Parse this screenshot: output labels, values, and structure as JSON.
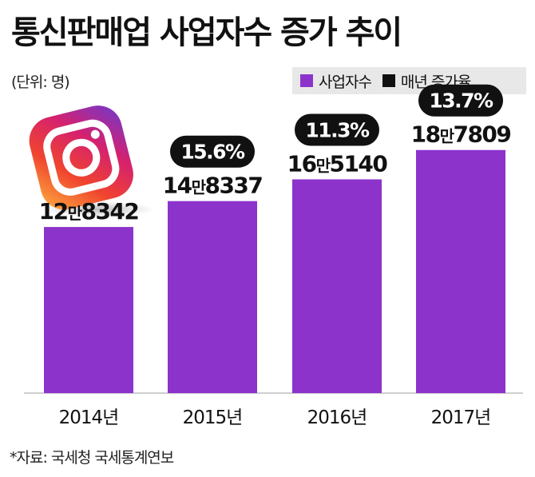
{
  "title": "통신판매업 사업자수 증가 추이",
  "unit_note": "(단위: 명)",
  "legend": [
    {
      "label": "사업자수",
      "color": "#8c33cc"
    },
    {
      "label": "매년 증가율",
      "color": "#111111"
    }
  ],
  "source": "*자료: 국세청 국세통계연보",
  "logo_icon": "instagram-logo-icon",
  "chart_data": {
    "type": "bar",
    "categories": [
      "2014년",
      "2015년",
      "2016년",
      "2017년"
    ],
    "series": [
      {
        "name": "사업자수",
        "values": [
          128342,
          148337,
          165140,
          187809
        ],
        "labels": [
          {
            "head": "12",
            "unit": "만",
            "tail": "8342"
          },
          {
            "head": "14",
            "unit": "만",
            "tail": "8337"
          },
          {
            "head": "16",
            "unit": "만",
            "tail": "5140"
          },
          {
            "head": "18",
            "unit": "만",
            "tail": "7809"
          }
        ]
      },
      {
        "name": "매년 증가율",
        "values": [
          null,
          15.6,
          11.3,
          13.7
        ],
        "labels": [
          null,
          "15.6%",
          "11.3%",
          "13.7%"
        ]
      }
    ],
    "ylim": [
      0,
      250000
    ],
    "bar_color": "#8c33cc",
    "grid": false
  }
}
